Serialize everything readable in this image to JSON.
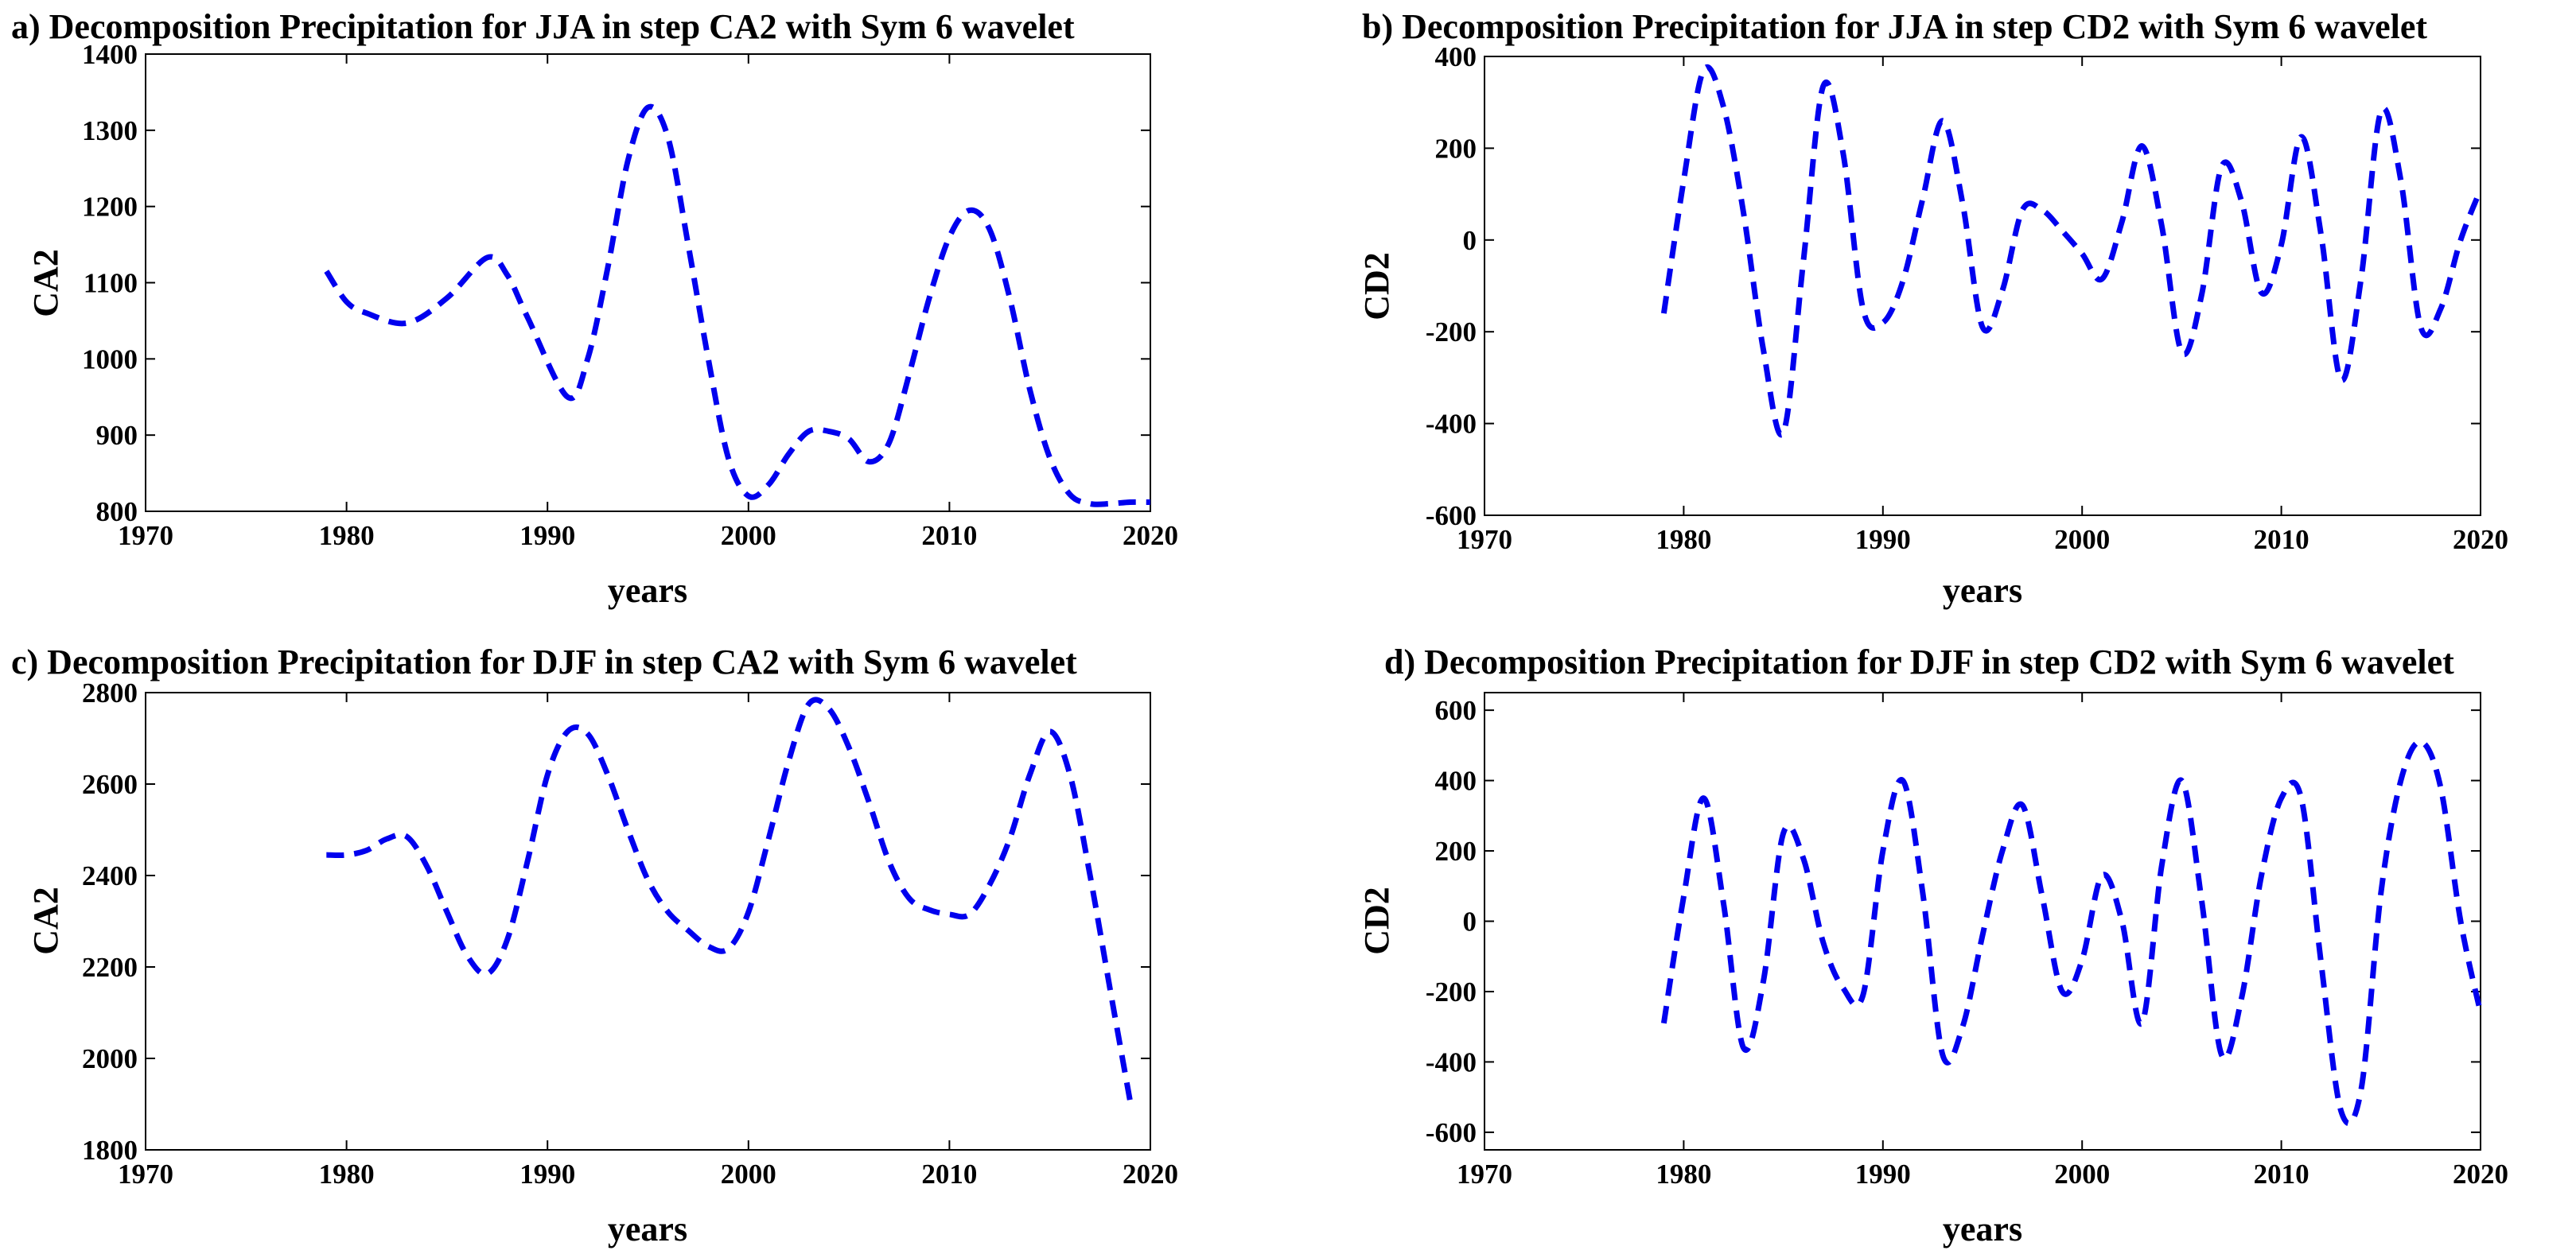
{
  "figure": {
    "colors": {
      "line": "#0000ee",
      "axes": "#000000",
      "background": "#ffffff"
    }
  },
  "chart_data": [
    {
      "type": "line",
      "title": "a) Decomposition Precipitation for JJA in step CA2 with Sym 6 wavelet",
      "xlabel": "years",
      "ylabel": "CA2",
      "xlim": [
        1970,
        2020
      ],
      "ylim": [
        800,
        1400
      ],
      "xticks": [
        1970,
        1980,
        1990,
        2000,
        2010,
        2020
      ],
      "yticks": [
        800,
        900,
        1000,
        1100,
        1200,
        1300,
        1400
      ],
      "series": [
        {
          "name": "CA2",
          "style": "dashed",
          "x": [
            1979,
            1980,
            1981,
            1983,
            1985,
            1987,
            1988,
            1989,
            1991,
            1992,
            1993,
            1994,
            1995,
            1996,
            1997,
            1998,
            1999,
            2000,
            2001,
            2002,
            2003,
            2004,
            2005,
            2006,
            2007,
            2008,
            2009,
            2010,
            2011,
            2012,
            2013,
            2014,
            2015,
            2016,
            2017,
            2018,
            2019,
            2020
          ],
          "y": [
            1115,
            1075,
            1060,
            1047,
            1080,
            1133,
            1110,
            1055,
            950,
            1000,
            1120,
            1260,
            1330,
            1290,
            1150,
            1000,
            870,
            820,
            835,
            875,
            905,
            905,
            895,
            865,
            890,
            980,
            1080,
            1160,
            1195,
            1170,
            1080,
            960,
            870,
            822,
            810,
            810,
            812,
            812
          ]
        }
      ]
    },
    {
      "type": "line",
      "title": "b) Decomposition Precipitation for JJA in step CD2 with Sym 6 wavelet",
      "xlabel": "years",
      "ylabel": "CD2",
      "xlim": [
        1970,
        2020
      ],
      "ylim": [
        -600,
        400
      ],
      "xticks": [
        1970,
        1980,
        1990,
        2000,
        2010,
        2020
      ],
      "yticks": [
        -600,
        -400,
        -200,
        0,
        200,
        400
      ],
      "series": [
        {
          "name": "CD2",
          "style": "dashed",
          "x": [
            1979,
            1980,
            1981,
            1982,
            1983,
            1984,
            1985,
            1986,
            1987,
            1988,
            1989,
            1990,
            1991,
            1992,
            1993,
            1994,
            1995,
            1996,
            1997,
            1998,
            1999,
            2000,
            2001,
            2002,
            2003,
            2004,
            2005,
            2006,
            2007,
            2008,
            2009,
            2010,
            2011,
            2012,
            2013,
            2014,
            2015,
            2016,
            2017,
            2018,
            2019,
            2020
          ],
          "y": [
            -160,
            130,
            370,
            290,
            60,
            -240,
            -420,
            -50,
            335,
            190,
            -150,
            -180,
            -90,
            90,
            260,
            80,
            -190,
            -110,
            65,
            65,
            20,
            -30,
            -85,
            40,
            205,
            30,
            -245,
            -120,
            160,
            85,
            -115,
            -10,
            225,
            10,
            -305,
            -85,
            280,
            130,
            -190,
            -150,
            0,
            110
          ]
        }
      ]
    },
    {
      "type": "line",
      "title": "c) Decomposition Precipitation for DJF in step CA2 with Sym 6 wavelet",
      "xlabel": "years",
      "ylabel": "CA2",
      "xlim": [
        1970,
        2020
      ],
      "ylim": [
        1800,
        2800
      ],
      "xticks": [
        1970,
        1980,
        1990,
        2000,
        2010,
        2020
      ],
      "yticks": [
        1800,
        2000,
        2200,
        2400,
        2600,
        2800
      ],
      "series": [
        {
          "name": "CA2",
          "style": "dashed",
          "x": [
            1979,
            1980,
            1981,
            1982,
            1983,
            1984,
            1985,
            1986,
            1987,
            1988,
            1989,
            1990,
            1991,
            1992,
            1993,
            1994,
            1995,
            1996,
            1997,
            1998,
            1999,
            2000,
            2001,
            2002,
            2003,
            2004,
            2005,
            2006,
            2007,
            2008,
            2009,
            2010,
            2011,
            2012,
            2013,
            2014,
            2015,
            2016,
            2017,
            2018,
            2019
          ],
          "y": [
            2445,
            2445,
            2455,
            2480,
            2485,
            2420,
            2320,
            2225,
            2185,
            2260,
            2430,
            2620,
            2715,
            2710,
            2620,
            2500,
            2390,
            2320,
            2280,
            2245,
            2240,
            2320,
            2480,
            2650,
            2775,
            2765,
            2680,
            2560,
            2430,
            2350,
            2325,
            2315,
            2315,
            2380,
            2480,
            2620,
            2715,
            2620,
            2400,
            2150,
            1905
          ]
        }
      ]
    },
    {
      "type": "line",
      "title": "d) Decomposition Precipitation for DJF in step CD2 with Sym 6 wavelet",
      "xlabel": "years",
      "ylabel": "CD2",
      "xlim": [
        1970,
        2020
      ],
      "ylim": [
        -650,
        650
      ],
      "xticks": [
        1970,
        1980,
        1990,
        2000,
        2010,
        2020
      ],
      "yticks": [
        -600,
        -400,
        -200,
        0,
        200,
        400,
        600
      ],
      "series": [
        {
          "name": "CD2",
          "style": "dashed",
          "x": [
            1979,
            1980,
            1981,
            1982,
            1983,
            1984,
            1985,
            1986,
            1987,
            1988,
            1989,
            1990,
            1991,
            1992,
            1993,
            1994,
            1995,
            1996,
            1997,
            1998,
            1999,
            2000,
            2001,
            2002,
            2003,
            2004,
            2005,
            2006,
            2007,
            2008,
            2009,
            2010,
            2011,
            2012,
            2013,
            2014,
            2015,
            2016,
            2017,
            2018,
            2019,
            2020
          ],
          "y": [
            -290,
            70,
            350,
            50,
            -360,
            -170,
            250,
            180,
            -60,
            -190,
            -210,
            200,
            400,
            80,
            -380,
            -300,
            -40,
            200,
            330,
            70,
            -200,
            -110,
            130,
            0,
            -290,
            160,
            400,
            60,
            -380,
            -220,
            130,
            350,
            350,
            -120,
            -540,
            -480,
            80,
            400,
            510,
            380,
            0,
            -260
          ]
        }
      ]
    }
  ]
}
